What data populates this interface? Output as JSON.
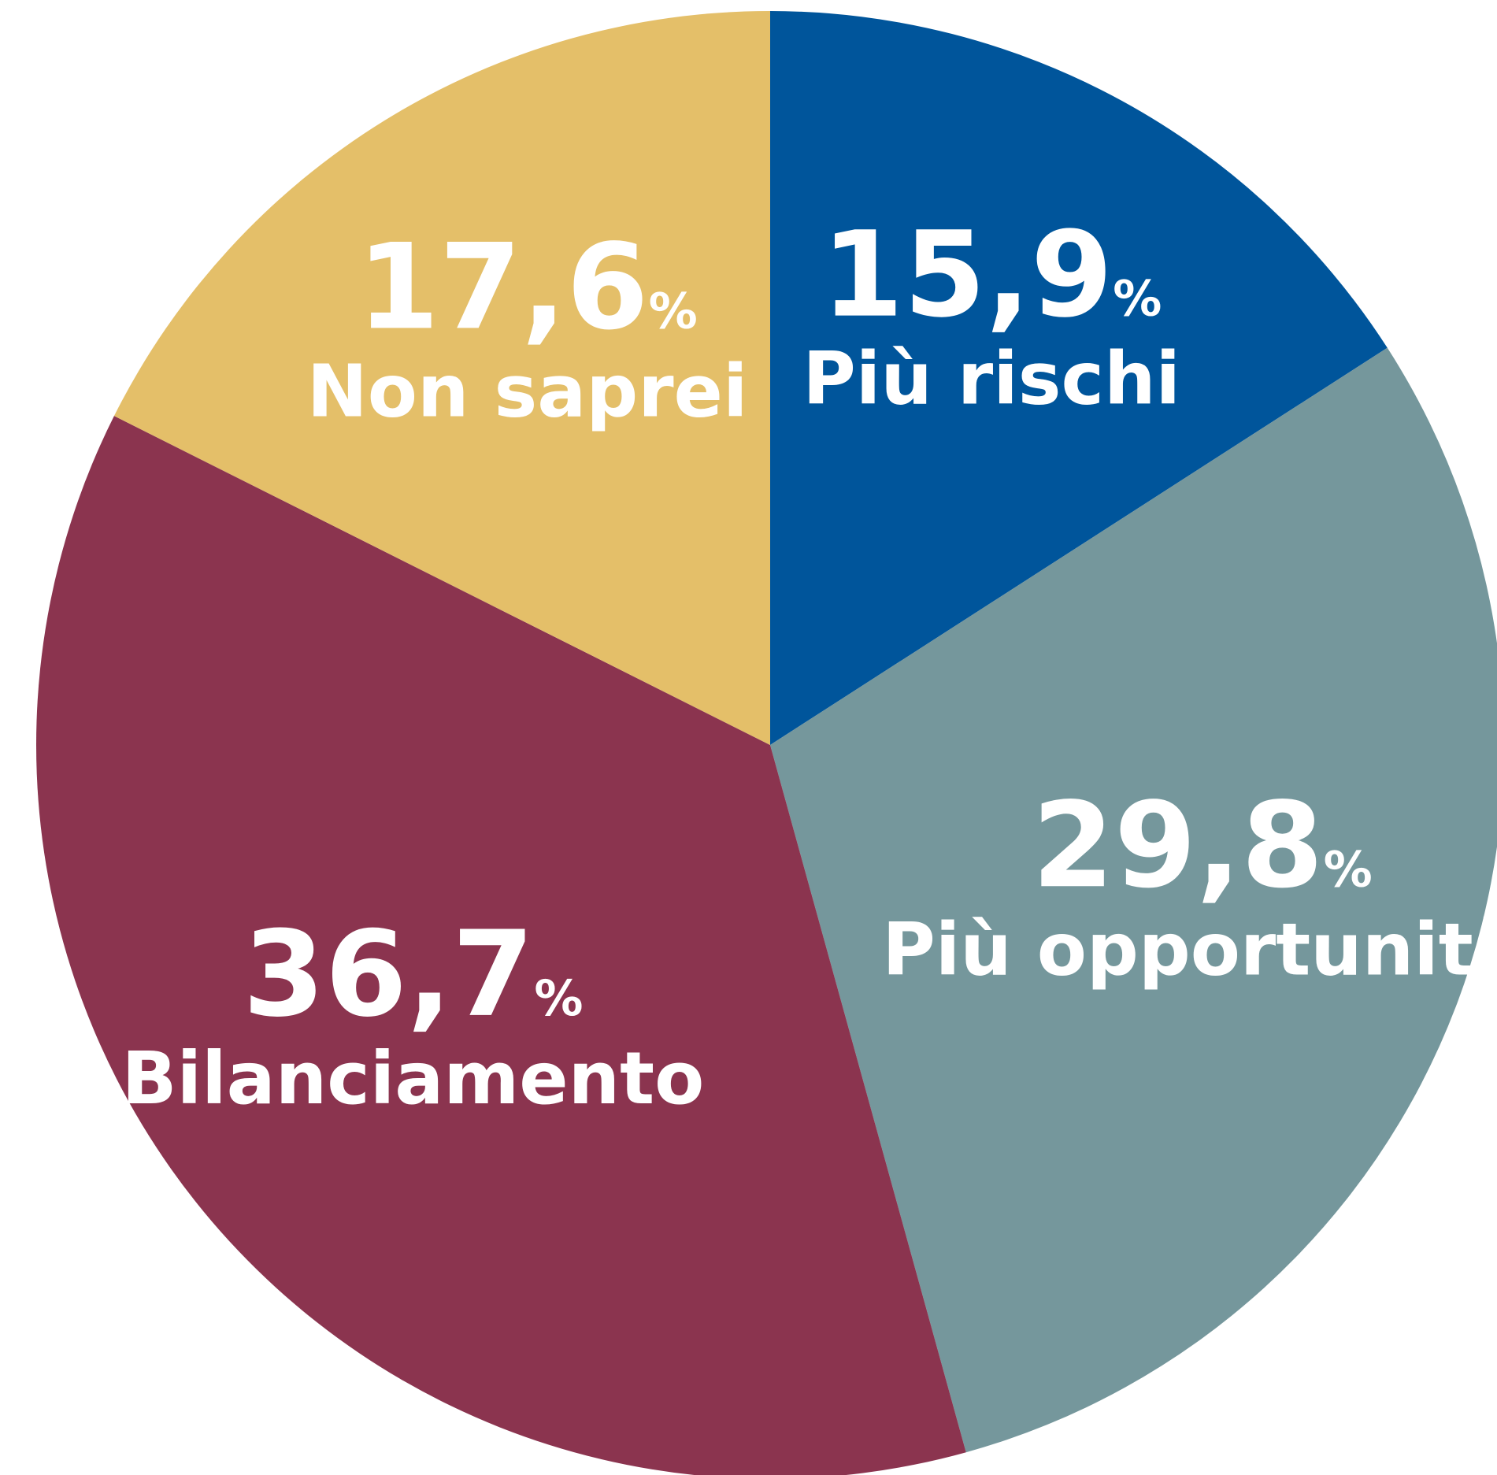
{
  "chart_data": {
    "type": "pie",
    "categories": [
      "Più rischi",
      "Più opportunità",
      "Bilanciamento",
      "Non saprei"
    ],
    "values": [
      15.9,
      29.8,
      36.7,
      17.6
    ],
    "value_labels": [
      "15,9%",
      "29,8%",
      "36,7%",
      "17,6%"
    ],
    "colors": [
      "#00559b",
      "#75979c",
      "#8b344f",
      "#e4bf69"
    ]
  }
}
